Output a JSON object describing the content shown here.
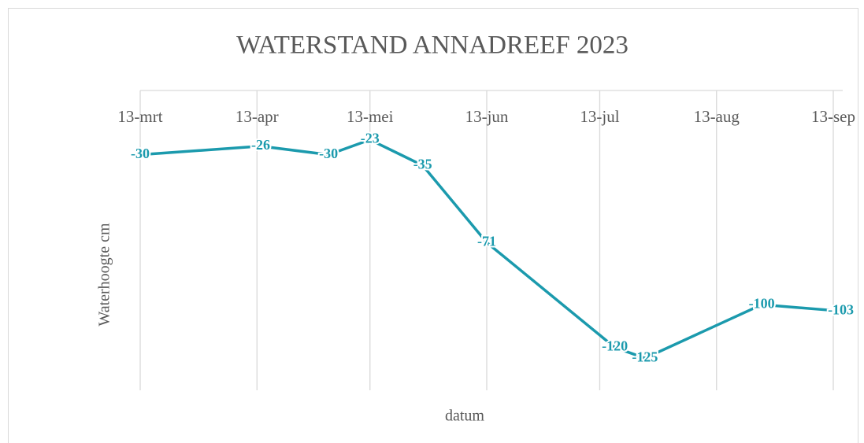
{
  "chart_data": {
    "type": "line",
    "title": "WATERSTAND ANNADREEF 2023",
    "x_label": "datum",
    "y_label": "Waterhoogte cm",
    "x": [
      72,
      104,
      122,
      133,
      147,
      164,
      198,
      206,
      237,
      258
    ],
    "series": [
      {
        "name": "Waterhoogte cm",
        "color": "#1b9aad",
        "values": [
          -30,
          -26,
          -30,
          -23,
          -35,
          -71,
          -120,
          -125,
          -100,
          -103
        ]
      }
    ],
    "xlim": [
      72,
      256
    ],
    "xticks": [
      {
        "value": 72,
        "label": "13-mrt"
      },
      {
        "value": 103,
        "label": "13-apr"
      },
      {
        "value": 133,
        "label": "13-mei"
      },
      {
        "value": 164,
        "label": "13-jun"
      },
      {
        "value": 194,
        "label": "13-jul"
      },
      {
        "value": 225,
        "label": "13-aug"
      },
      {
        "value": 256,
        "label": "13-sep"
      }
    ],
    "ylim": [
      -140,
      0
    ],
    "grid": true
  }
}
